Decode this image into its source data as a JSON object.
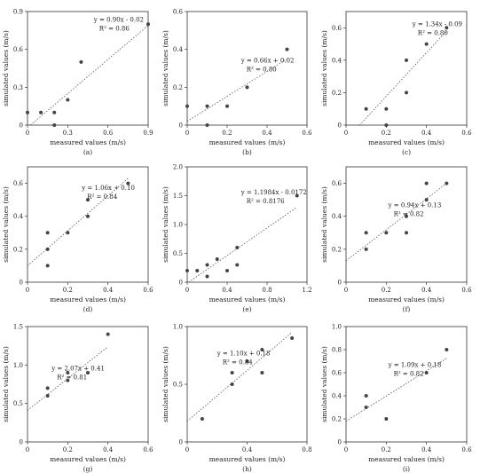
{
  "chart_data": [
    {
      "type": "scatter",
      "panel_label": "(a)",
      "xlabel": "measured values (m/s)",
      "ylabel": "simulated values (m/s)",
      "xlim": [
        0,
        0.9
      ],
      "ylim": [
        0,
        0.9
      ],
      "xticks": [
        "0",
        "0.3",
        "0.6",
        "0.9"
      ],
      "yticks": [
        "0",
        "0.3",
        "0.6",
        "0.9"
      ],
      "equation": "y = 0.90x - 0.02",
      "r2": "R² = 0.86",
      "trend": {
        "slope": 0.9,
        "intercept": -0.02
      },
      "points": [
        [
          0,
          0.1
        ],
        [
          0.1,
          0.1
        ],
        [
          0.2,
          0.1
        ],
        [
          0.2,
          0
        ],
        [
          0.3,
          0.2
        ],
        [
          0.4,
          0.5
        ],
        [
          0.9,
          0.8
        ]
      ],
      "grid": false
    },
    {
      "type": "scatter",
      "panel_label": "(b)",
      "xlabel": "measured values (m/s)",
      "ylabel": "simulated values (m/s)",
      "xlim": [
        0,
        0.6
      ],
      "ylim": [
        0,
        0.6
      ],
      "xticks": [
        "0",
        "0.2",
        "0.4",
        "0.6"
      ],
      "yticks": [
        "0",
        "0.2",
        "0.4",
        "0.6"
      ],
      "equation": "y = 0.66x + 0.02",
      "r2": "R² = 0.80",
      "trend": {
        "slope": 0.66,
        "intercept": 0.02
      },
      "points": [
        [
          0,
          0.1
        ],
        [
          0.1,
          0.1
        ],
        [
          0.1,
          0
        ],
        [
          0.2,
          0.1
        ],
        [
          0.3,
          0.2
        ],
        [
          0.5,
          0.4
        ]
      ],
      "grid": false
    },
    {
      "type": "scatter",
      "panel_label": "(c)",
      "xlabel": "measured values (m/s)",
      "ylabel": "simulated values (m/s)",
      "xlim": [
        0,
        0.6
      ],
      "ylim": [
        0,
        0.7
      ],
      "xticks": [
        "0",
        "0.2",
        "0.4",
        "0.6"
      ],
      "yticks": [
        "0",
        "0.2",
        "0.4",
        "0.6"
      ],
      "equation": "y = 1.34x - 0.09",
      "r2": "R² = 0.80",
      "trend": {
        "slope": 1.34,
        "intercept": -0.09
      },
      "points": [
        [
          0.1,
          0.1
        ],
        [
          0.2,
          0.1
        ],
        [
          0.2,
          0
        ],
        [
          0.3,
          0.2
        ],
        [
          0.3,
          0.4
        ],
        [
          0.4,
          0.5
        ],
        [
          0.5,
          0.6
        ]
      ],
      "grid": false
    },
    {
      "type": "scatter",
      "panel_label": "(d)",
      "xlabel": "measured values (m/s)",
      "ylabel": "simulated values (m/s)",
      "xlim": [
        0,
        0.6
      ],
      "ylim": [
        0,
        0.7
      ],
      "xticks": [
        "0",
        "0.2",
        "0.4",
        "0.6"
      ],
      "yticks": [
        "0",
        "0.2",
        "0.4",
        "0.6"
      ],
      "equation": "y = 1.06x + 0.10",
      "r2": "R² = 0.84",
      "trend": {
        "slope": 1.06,
        "intercept": 0.1
      },
      "points": [
        [
          0.1,
          0.1
        ],
        [
          0.1,
          0.2
        ],
        [
          0.1,
          0.3
        ],
        [
          0.2,
          0.3
        ],
        [
          0.3,
          0.4
        ],
        [
          0.3,
          0.5
        ],
        [
          0.5,
          0.6
        ]
      ],
      "grid": false
    },
    {
      "type": "scatter",
      "panel_label": "(e)",
      "xlabel": "measured values (m/s)",
      "ylabel": "simulated values (m/s)",
      "xlim": [
        0,
        1.2
      ],
      "ylim": [
        0,
        2.0
      ],
      "xticks": [
        "0",
        "0.4",
        "0.8",
        "1.2"
      ],
      "yticks": [
        "0",
        "0.5",
        "1.0",
        "1.5",
        "2.0"
      ],
      "equation": "y = 1.1984x - 0.0172",
      "r2": "R² = 0.8176",
      "trend": {
        "slope": 1.1984,
        "intercept": -0.0172
      },
      "points": [
        [
          0,
          0.2
        ],
        [
          0.1,
          0.2
        ],
        [
          0.2,
          0.1
        ],
        [
          0.2,
          0.3
        ],
        [
          0.3,
          0.4
        ],
        [
          0.4,
          0.2
        ],
        [
          0.5,
          0.3
        ],
        [
          0.5,
          0.6
        ],
        [
          1.1,
          1.5
        ]
      ],
      "grid": false
    },
    {
      "type": "scatter",
      "panel_label": "(f)",
      "xlabel": "measured values (m/s)",
      "ylabel": "simulated values (m/s)",
      "xlim": [
        0,
        0.6
      ],
      "ylim": [
        0,
        0.7
      ],
      "xticks": [
        "0",
        "0.2",
        "0.4",
        "0.6"
      ],
      "yticks": [
        "0",
        "0.2",
        "0.4",
        "0.6"
      ],
      "equation": "y = 0.94x + 0.13",
      "r2": "R² = 0.82",
      "trend": {
        "slope": 0.94,
        "intercept": 0.13
      },
      "points": [
        [
          0.1,
          0.2
        ],
        [
          0.1,
          0.3
        ],
        [
          0.2,
          0.3
        ],
        [
          0.3,
          0.3
        ],
        [
          0.3,
          0.4
        ],
        [
          0.4,
          0.5
        ],
        [
          0.4,
          0.6
        ],
        [
          0.5,
          0.6
        ]
      ],
      "grid": false
    },
    {
      "type": "scatter",
      "panel_label": "(g)",
      "xlabel": "measured values (m/s)",
      "ylabel": "simulated values (m/s)",
      "xlim": [
        0,
        0.6
      ],
      "ylim": [
        0,
        1.5
      ],
      "xticks": [
        "0",
        "0.2",
        "0.4",
        "0.6"
      ],
      "yticks": [
        "0",
        "0.5",
        "1.0",
        "1.5"
      ],
      "equation": "y = 2.07x + 0.41",
      "r2": "R² = 0.81",
      "trend": {
        "slope": 2.07,
        "intercept": 0.41
      },
      "points": [
        [
          0.1,
          0.6
        ],
        [
          0.1,
          0.7
        ],
        [
          0.2,
          0.8
        ],
        [
          0.2,
          0.9
        ],
        [
          0.3,
          0.9
        ],
        [
          0.4,
          1.4
        ]
      ],
      "grid": false
    },
    {
      "type": "scatter",
      "panel_label": "(h)",
      "xlabel": "measured values (m/s)",
      "ylabel": "simulated values (m/s)",
      "xlim": [
        0,
        0.8
      ],
      "ylim": [
        0,
        1.0
      ],
      "xticks": [
        "0",
        "0.4",
        "0.8"
      ],
      "yticks": [
        "0",
        "0.5",
        "1.0"
      ],
      "equation": "y = 1.10x + 0.18",
      "r2": "R² = 0.84",
      "trend": {
        "slope": 1.1,
        "intercept": 0.18
      },
      "points": [
        [
          0.1,
          0.2
        ],
        [
          0.3,
          0.5
        ],
        [
          0.3,
          0.6
        ],
        [
          0.4,
          0.7
        ],
        [
          0.5,
          0.6
        ],
        [
          0.5,
          0.8
        ],
        [
          0.7,
          0.9
        ]
      ],
      "grid": false
    },
    {
      "type": "scatter",
      "panel_label": "(i)",
      "xlabel": "measured values (m/s)",
      "ylabel": "simulated values (m/s)",
      "xlim": [
        0,
        0.6
      ],
      "ylim": [
        0,
        1.0
      ],
      "xticks": [
        "0",
        "0.2",
        "0.4",
        "0.6"
      ],
      "yticks": [
        "0",
        "0.2",
        "0.4",
        "0.6",
        "0.8",
        "1.0"
      ],
      "equation": "y = 1.09x + 0.18",
      "r2": "R² = 0.82",
      "trend": {
        "slope": 1.09,
        "intercept": 0.18
      },
      "points": [
        [
          0.1,
          0.3
        ],
        [
          0.1,
          0.4
        ],
        [
          0.2,
          0.2
        ],
        [
          0.4,
          0.6
        ],
        [
          0.5,
          0.8
        ]
      ],
      "grid": false
    }
  ]
}
